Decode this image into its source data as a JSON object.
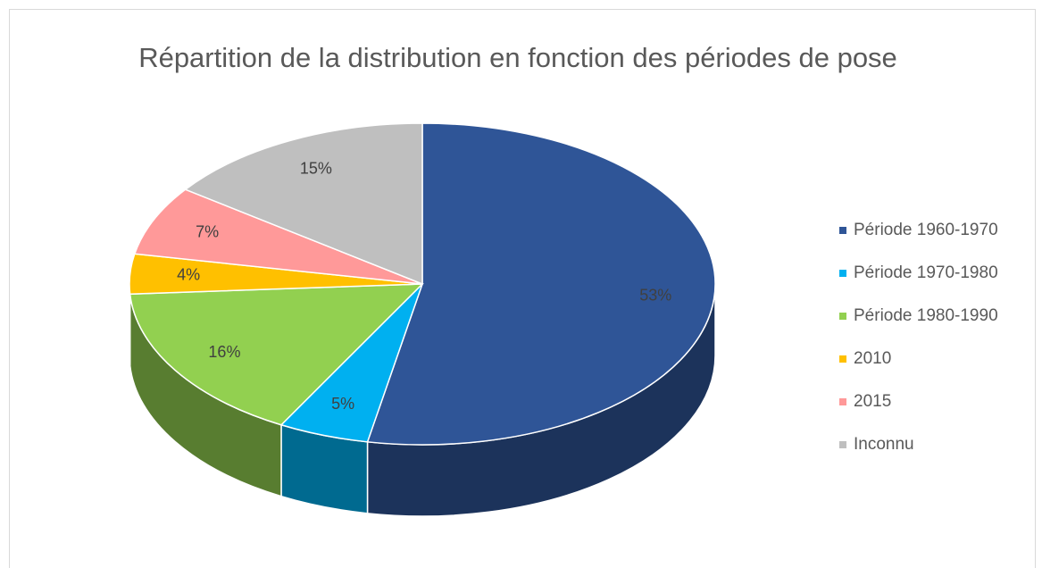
{
  "chart_data": {
    "type": "pie3d",
    "title": "Répartition de la distribution en fonction des périodes de pose",
    "categories": [
      "Période 1960-1970",
      "Période 1970-1980",
      "Période 1980-1990",
      "2010",
      "2015",
      "Inconnu"
    ],
    "values": [
      53,
      5,
      16,
      4,
      7,
      15
    ],
    "value_labels": [
      "53%",
      "5%",
      "16%",
      "4%",
      "7%",
      "15%"
    ],
    "colors": [
      "#2f5597",
      "#00b0f0",
      "#92d050",
      "#ffc000",
      "#ff9999",
      "#bfbfbf"
    ],
    "legend": "right"
  }
}
